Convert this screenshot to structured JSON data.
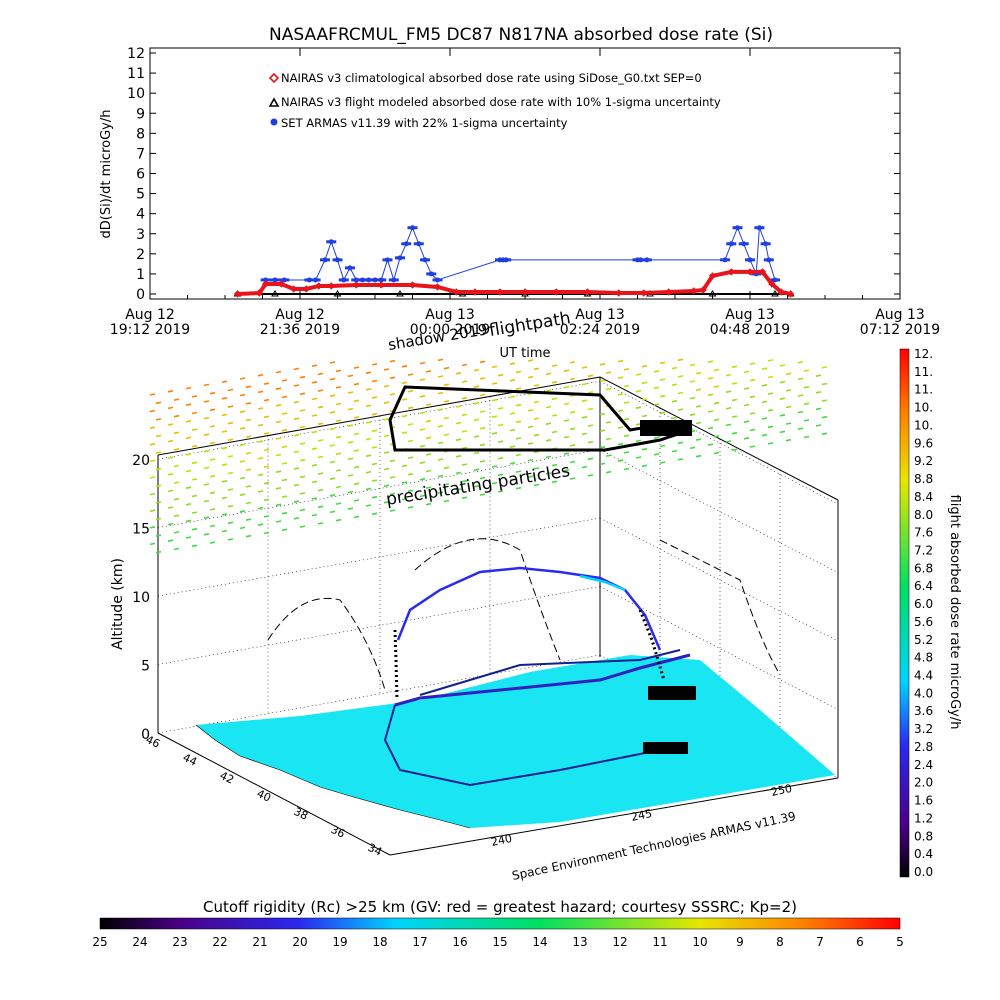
{
  "chart_data": [
    {
      "type": "line",
      "title": "NASAAFRCMUL_FM5 DC87 N817NA absorbed dose rate (Si)",
      "ylabel": "dD(Si)/dt microGy/h",
      "xlabel": "UT time",
      "ylim": [
        0,
        12
      ],
      "yticks": [
        "0",
        "1",
        "2",
        "3",
        "4",
        "5",
        "6",
        "7",
        "8",
        "9",
        "10",
        "11",
        "12"
      ],
      "xlim": [
        "2019-08-12 19:12",
        "2019-08-13 07:12"
      ],
      "xticks": [
        {
          "top": "Aug 12",
          "bottom": "19:12 2019",
          "hours": 0
        },
        {
          "top": "Aug 12",
          "bottom": "21:36 2019",
          "hours": 2.4
        },
        {
          "top": "Aug 13",
          "bottom": "00:00 2019",
          "hours": 4.8
        },
        {
          "top": "Aug 13",
          "bottom": "02:24 2019",
          "hours": 7.2
        },
        {
          "top": "Aug 13",
          "bottom": "04:48 2019",
          "hours": 9.6
        },
        {
          "top": "Aug 13",
          "bottom": "07:12 2019",
          "hours": 12.0
        }
      ],
      "legend_position": "top-left",
      "series": [
        {
          "name": "NAIRAS v3 climatological absorbed dose rate using SiDose_G0.txt SEP=0",
          "marker": "diamond",
          "color": "#e8141b",
          "x": [
            1.4,
            1.75,
            1.85,
            2.1,
            2.3,
            2.5,
            2.7,
            2.9,
            3.3,
            3.7,
            4.2,
            4.6,
            4.9,
            5.2,
            5.6,
            6.0,
            6.5,
            7.0,
            7.5,
            7.9,
            8.3,
            8.7,
            8.85,
            9.0,
            9.3,
            9.6,
            9.8,
            9.95,
            10.1,
            10.25
          ],
          "y": [
            0.0,
            0.05,
            0.5,
            0.5,
            0.25,
            0.25,
            0.4,
            0.4,
            0.45,
            0.45,
            0.45,
            0.35,
            0.1,
            0.1,
            0.1,
            0.1,
            0.1,
            0.1,
            0.05,
            0.05,
            0.1,
            0.15,
            0.2,
            0.9,
            1.1,
            1.1,
            1.1,
            0.5,
            0.1,
            0.0
          ]
        },
        {
          "name": "NAIRAS v3 flight modeled absorbed dose rate with 10% 1-sigma uncertainty",
          "marker": "triangle",
          "color": "#000000",
          "x": [
            1.4,
            2.0,
            3.0,
            4.0,
            5.0,
            6.0,
            7.0,
            8.0,
            9.0,
            10.0,
            10.25
          ],
          "y": [
            0.0,
            0.0,
            0.0,
            0.0,
            0.0,
            0.0,
            0.0,
            0.0,
            0.0,
            0.0,
            0.0
          ]
        },
        {
          "name": "SET ARMAS v11.39 with 22% 1-sigma uncertainty",
          "marker": "dot",
          "color": "#1f3fe0",
          "x": [
            1.85,
            2.0,
            2.15,
            2.55,
            2.65,
            2.8,
            2.9,
            3.0,
            3.1,
            3.2,
            3.3,
            3.4,
            3.5,
            3.6,
            3.7,
            3.8,
            3.9,
            4.0,
            4.1,
            4.2,
            4.3,
            4.4,
            4.5,
            4.6,
            5.6,
            5.65,
            5.7,
            7.8,
            7.85,
            7.95,
            9.2,
            9.3,
            9.4,
            9.5,
            9.6,
            9.7,
            9.75,
            9.85,
            9.9,
            10.0
          ],
          "y": [
            0.7,
            0.7,
            0.7,
            0.7,
            0.7,
            1.7,
            2.6,
            1.7,
            0.7,
            1.3,
            0.7,
            0.7,
            0.7,
            0.7,
            0.7,
            1.7,
            0.7,
            1.8,
            2.5,
            3.3,
            2.5,
            1.7,
            1.0,
            0.7,
            1.7,
            1.7,
            1.7,
            1.7,
            1.7,
            1.7,
            1.7,
            2.5,
            3.3,
            2.5,
            1.7,
            1.0,
            3.3,
            2.5,
            1.7,
            0.7
          ]
        }
      ]
    },
    {
      "type": "scatter",
      "subtype": "3d",
      "zlabel": "Altitude (km)",
      "zticks": [
        "0",
        "5",
        "10",
        "15",
        "20"
      ],
      "lat_ticks": [
        "46",
        "44",
        "42",
        "40",
        "38",
        "36",
        "34"
      ],
      "lon_ticks": [
        "240",
        "245",
        "250"
      ],
      "axis_caption": "Space Environment Technologies ARMAS v11.39",
      "annotations": [
        "precipitating particles",
        "shadow 2019",
        "flightpath"
      ]
    },
    {
      "type": "heatmap",
      "role": "colorbar",
      "orientation": "vertical",
      "label": "flight absorbed dose rate microGy/h",
      "range": [
        0.0,
        12.0
      ],
      "ticks": [
        "12.",
        "11.",
        "11.",
        "10.",
        "10.",
        "9.6",
        "9.2",
        "8.8",
        "8.4",
        "8.0",
        "7.6",
        "7.2",
        "6.8",
        "6.4",
        "6.0",
        "5.6",
        "5.2",
        "4.8",
        "4.4",
        "4.0",
        "3.6",
        "3.2",
        "2.8",
        "2.4",
        "2.0",
        "1.6",
        "1.2",
        "0.8",
        "0.4",
        "0.0"
      ]
    },
    {
      "type": "heatmap",
      "role": "colorbar",
      "orientation": "horizontal",
      "label": "Cutoff rigidity (Rc) >25 km (GV: red = greatest hazard; courtesy SSSRC; Kp=2)",
      "range": [
        25,
        5
      ],
      "ticks": [
        "25",
        "24",
        "23",
        "22",
        "21",
        "20",
        "19",
        "18",
        "17",
        "16",
        "15",
        "14",
        "13",
        "12",
        "11",
        "10",
        "9",
        "8",
        "7",
        "6",
        "5"
      ]
    }
  ],
  "colors": {
    "nairas_clim": "#e8141b",
    "set_armas": "#1f3fe0",
    "map_fill": "#19e6f2",
    "flight_track": "#000000",
    "colorscale": [
      "#000000",
      "#4a0086",
      "#2a2af0",
      "#00d4ff",
      "#00e060",
      "#e6e600",
      "#ff8000",
      "#ff0000"
    ]
  }
}
